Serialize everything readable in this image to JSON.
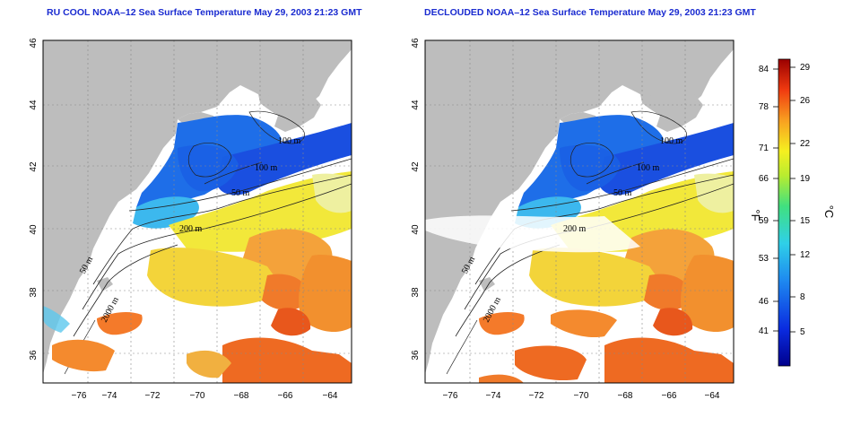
{
  "panels": [
    {
      "title": "RU COOL NOAA–12 Sea Surface Temperature May 29, 2003 21:23 GMT",
      "contour_labels": [
        "100 m",
        "100 m",
        "50 m",
        "200 m",
        "50 m",
        "2000 m"
      ]
    },
    {
      "title": "DECLOUDED NOAA–12 Sea Surface Temperature May 29, 2003 21:23 GMT",
      "contour_labels": [
        "100 m",
        "100 m",
        "50 m",
        "200 m",
        "50 m",
        "2000 m"
      ]
    }
  ],
  "axes": {
    "lon_ticks": [
      "−76",
      "−74",
      "−72",
      "−70",
      "−68",
      "−66",
      "−64"
    ],
    "lat_ticks": [
      "36",
      "38",
      "40",
      "42",
      "44",
      "46"
    ]
  },
  "colorbar": {
    "fahrenheit_label": "°F",
    "celsius_label": "°C",
    "fahrenheit_ticks": [
      "84",
      "78",
      "71",
      "66",
      "59",
      "53",
      "46",
      "41"
    ],
    "celsius_ticks": [
      "29",
      "26",
      "22",
      "19",
      "15",
      "12",
      "8",
      "5"
    ]
  },
  "colors": {
    "land": "#bdbdbd",
    "no_data": "#ffffff",
    "title_blue": "#1a2bd0"
  }
}
